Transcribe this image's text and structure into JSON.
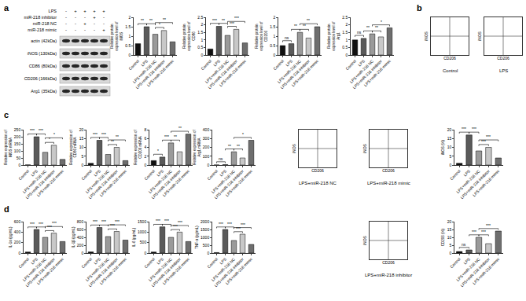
{
  "panel_labels": [
    "a",
    "b",
    "c",
    "d"
  ],
  "blot": {
    "treatments": [
      {
        "name": "LPS",
        "signs": [
          "-",
          "+",
          "+",
          "+",
          "+"
        ]
      },
      {
        "name": "miR-218 inhibitor",
        "signs": [
          "-",
          "-",
          "-",
          "+",
          "-"
        ]
      },
      {
        "name": "miR-218 NC",
        "signs": [
          "-",
          "-",
          "+",
          "-",
          "-"
        ]
      },
      {
        "name": "miR-218 mimic",
        "signs": [
          "-",
          "-",
          "-",
          "-",
          "+"
        ]
      }
    ],
    "bands": [
      "actin (42kDa)",
      "iNOS (130kDa)",
      "CD86 (80kDa)",
      "CD206 (166kDa)",
      "Arg1 (35kDa)"
    ]
  },
  "flow_plots": [
    {
      "title": "Control",
      "x_label": "CD206",
      "y_label": "iNOS"
    },
    {
      "title": "LPS",
      "x_label": "CD206",
      "y_label": "iNOS"
    },
    {
      "title": "LPS+miR-218 NC",
      "x_label": "CD206",
      "y_label": "iNOS"
    },
    {
      "title": "LPS+miR-218 mimic",
      "x_label": "CD206",
      "y_label": "iNOS"
    },
    {
      "title": "LPS+miR-218 inhibitor",
      "x_label": "CD206",
      "y_label": "iNOS"
    }
  ],
  "chart_data": [
    {
      "type": "bar",
      "y_label": "Relative protein expression level of iNOS",
      "categories": [
        "Control",
        "LPS",
        "LPS+miR-218 NC",
        "LPS+miR-218 inhibitor",
        "LPS+miR-218 mimic"
      ],
      "values": [
        0.6,
        1.5,
        1.1,
        1.3,
        0.7
      ],
      "colors": [
        "#111111",
        "#5a5a5a",
        "#9a9a9a",
        "#c8c8c8",
        "#6e6e6e"
      ],
      "ylim": [
        0,
        2
      ],
      "yticks": [
        0,
        0.5,
        1,
        1.5,
        2
      ],
      "annotations": [
        {
          "from": "Control",
          "to": "LPS",
          "text": "**"
        },
        {
          "from": "LPS",
          "to": "LPS+miR-218 NC",
          "text": "**"
        },
        {
          "from": "LPS+miR-218 NC",
          "to": "LPS+miR-218 inhibitor",
          "text": "*"
        },
        {
          "from": "LPS+miR-218 NC",
          "to": "LPS+miR-218 mimic",
          "text": "**"
        }
      ]
    },
    {
      "type": "bar",
      "y_label": "Relative protein expression level of CD86",
      "categories": [
        "Control",
        "LPS",
        "LPS+miR-218 NC",
        "LPS+miR-218 inhibitor",
        "LPS+miR-218 mimic"
      ],
      "values": [
        0.4,
        1.9,
        1.3,
        1.7,
        0.8
      ],
      "colors": [
        "#111111",
        "#5a5a5a",
        "#9a9a9a",
        "#c8c8c8",
        "#6e6e6e"
      ],
      "ylim": [
        0,
        2.5
      ],
      "yticks": [
        0,
        0.5,
        1,
        1.5,
        2,
        2.5
      ],
      "annotations": [
        {
          "from": "Control",
          "to": "LPS",
          "text": "***"
        },
        {
          "from": "LPS",
          "to": "LPS+miR-218 NC",
          "text": "**"
        },
        {
          "from": "LPS+miR-218 NC",
          "to": "LPS+miR-218 inhibitor",
          "text": "***"
        },
        {
          "from": "LPS+miR-218 NC",
          "to": "LPS+miR-218 mimic",
          "text": "***"
        }
      ]
    },
    {
      "type": "bar",
      "y_label": "Relative protein expression level of CD206",
      "categories": [
        "Control",
        "LPS",
        "LPS+miR-218 NC",
        "LPS+miR-218 inhibitor",
        "LPS+miR-218 mimic"
      ],
      "values": [
        0.5,
        0.6,
        1.2,
        0.9,
        1.5
      ],
      "colors": [
        "#111111",
        "#5a5a5a",
        "#9a9a9a",
        "#c8c8c8",
        "#6e6e6e"
      ],
      "ylim": [
        0,
        2
      ],
      "yticks": [
        0,
        0.5,
        1,
        1.5,
        2
      ],
      "annotations": [
        {
          "from": "Control",
          "to": "LPS",
          "text": "ns"
        },
        {
          "from": "LPS",
          "to": "LPS+miR-218 NC",
          "text": "**"
        },
        {
          "from": "LPS+miR-218 NC",
          "to": "LPS+miR-218 inhibitor",
          "text": "**"
        },
        {
          "from": "LPS+miR-218 NC",
          "to": "LPS+miR-218 mimic",
          "text": "**"
        }
      ]
    },
    {
      "type": "bar",
      "y_label": "Relative protein expression level of Arg1",
      "categories": [
        "Control",
        "LPS",
        "LPS+miR-218 NC",
        "LPS+miR-218 inhibitor",
        "LPS+miR-218 mimic"
      ],
      "values": [
        1.0,
        1.1,
        1.4,
        1.2,
        1.8
      ],
      "colors": [
        "#111111",
        "#5a5a5a",
        "#9a9a9a",
        "#c8c8c8",
        "#6e6e6e"
      ],
      "ylim": [
        0,
        2.5
      ],
      "yticks": [
        0,
        0.5,
        1,
        1.5,
        2,
        2.5
      ],
      "annotations": [
        {
          "from": "Control",
          "to": "LPS",
          "text": "ns"
        },
        {
          "from": "LPS",
          "to": "LPS+miR-218 NC",
          "text": "**"
        },
        {
          "from": "LPS+miR-218 NC",
          "to": "LPS+miR-218 inhibitor",
          "text": "**"
        },
        {
          "from": "LPS+miR-218 NC",
          "to": "LPS+miR-218 mimic",
          "text": "*"
        }
      ]
    },
    {
      "type": "bar",
      "y_label": "Relative expression of iNOS mRNA",
      "categories": [
        "Control",
        "LPS",
        "LPS+miR-218 NC",
        "LPS+miR-218 inhibitor",
        "LPS+miR-218 mimic"
      ],
      "values": [
        1,
        200,
        90,
        140,
        40
      ],
      "colors": [
        "#111111",
        "#5a5a5a",
        "#9a9a9a",
        "#c8c8c8",
        "#6e6e6e"
      ],
      "ylim": [
        0,
        250
      ],
      "yticks": [
        0,
        50,
        100,
        150,
        200,
        250
      ],
      "annotations": [
        {
          "from": "Control",
          "to": "LPS",
          "text": "***"
        },
        {
          "from": "LPS",
          "to": "LPS+miR-218 NC",
          "text": "***"
        },
        {
          "from": "LPS+miR-218 NC",
          "to": "LPS+miR-218 inhibitor",
          "text": "*"
        },
        {
          "from": "LPS+miR-218 NC",
          "to": "LPS+miR-218 mimic",
          "text": "*"
        }
      ]
    },
    {
      "type": "bar",
      "y_label": "Relative expression of CD86 mRNA",
      "categories": [
        "Control",
        "LPS",
        "LPS+miR-218 NC",
        "LPS+miR-218 inhibitor",
        "LPS+miR-218 mimic"
      ],
      "values": [
        1,
        14,
        6,
        10,
        2.5
      ],
      "colors": [
        "#111111",
        "#5a5a5a",
        "#9a9a9a",
        "#c8c8c8",
        "#6e6e6e"
      ],
      "ylim": [
        0,
        20
      ],
      "yticks": [
        0,
        5,
        10,
        15,
        20
      ],
      "annotations": [
        {
          "from": "Control",
          "to": "LPS",
          "text": "***"
        },
        {
          "from": "LPS",
          "to": "LPS+miR-218 NC",
          "text": "***"
        },
        {
          "from": "LPS+miR-218 NC",
          "to": "LPS+miR-218 inhibitor",
          "text": "**"
        },
        {
          "from": "LPS+miR-218 NC",
          "to": "LPS+miR-218 mimic",
          "text": "**"
        }
      ]
    },
    {
      "type": "bar",
      "y_label": "Relative expression of CD206 mRNA",
      "categories": [
        "Control",
        "LPS",
        "LPS+miR-218 NC",
        "LPS+miR-218 inhibitor",
        "LPS+miR-218 mimic"
      ],
      "values": [
        1,
        1.8,
        5,
        3,
        7
      ],
      "colors": [
        "#111111",
        "#5a5a5a",
        "#9a9a9a",
        "#c8c8c8",
        "#6e6e6e"
      ],
      "ylim": [
        0,
        8
      ],
      "yticks": [
        0,
        2,
        4,
        6,
        8
      ],
      "annotations": [
        {
          "from": "Control",
          "to": "LPS",
          "text": "*"
        },
        {
          "from": "LPS",
          "to": "LPS+miR-218 NC",
          "text": "***"
        },
        {
          "from": "LPS+miR-218 NC",
          "to": "LPS+miR-218 inhibitor",
          "text": "**"
        },
        {
          "from": "LPS+miR-218 NC",
          "to": "LPS+miR-218 mimic",
          "text": "**"
        }
      ]
    },
    {
      "type": "bar",
      "y_label": "Relative expression of Arg1 mRNA",
      "categories": [
        "Control",
        "LPS",
        "LPS+miR-218 NC",
        "LPS+miR-218 inhibitor",
        "LPS+miR-218 mimic"
      ],
      "values": [
        1,
        5,
        150,
        80,
        280
      ],
      "colors": [
        "#111111",
        "#5a5a5a",
        "#9a9a9a",
        "#c8c8c8",
        "#6e6e6e"
      ],
      "ylim": [
        0,
        400
      ],
      "yticks": [
        0,
        100,
        200,
        300,
        400
      ],
      "annotations": [
        {
          "from": "Control",
          "to": "LPS",
          "text": "ns"
        },
        {
          "from": "LPS",
          "to": "LPS+miR-218 NC",
          "text": "**"
        },
        {
          "from": "LPS+miR-218 NC",
          "to": "LPS+miR-218 inhibitor",
          "text": "**"
        },
        {
          "from": "LPS+miR-218 NC",
          "to": "LPS+miR-218 mimic",
          "text": "*"
        }
      ]
    },
    {
      "type": "bar",
      "y_label": "IL-1α (pg/mL)",
      "categories": [
        "Control",
        "LPS",
        "LPS+miR-218 NC",
        "LPS+miR-218 inhibitor",
        "LPS+miR-218 mimic"
      ],
      "values": [
        20,
        450,
        300,
        380,
        220
      ],
      "colors": [
        "#111111",
        "#5a5a5a",
        "#9a9a9a",
        "#c8c8c8",
        "#6e6e6e"
      ],
      "ylim": [
        0,
        600
      ],
      "yticks": [
        0,
        200,
        400,
        600
      ],
      "annotations": [
        {
          "from": "Control",
          "to": "LPS",
          "text": "***"
        },
        {
          "from": "LPS",
          "to": "LPS+miR-218 NC",
          "text": "***"
        },
        {
          "from": "LPS+miR-218 NC",
          "to": "LPS+miR-218 inhibitor",
          "text": "***"
        },
        {
          "from": "LPS+miR-218 NC",
          "to": "LPS+miR-218 mimic",
          "text": "***"
        }
      ]
    },
    {
      "type": "bar",
      "y_label": "IL-1β (pg/mL)",
      "categories": [
        "Control",
        "LPS",
        "LPS+miR-218 NC",
        "LPS+miR-218 inhibitor",
        "LPS+miR-218 mimic"
      ],
      "values": [
        30,
        650,
        420,
        550,
        330
      ],
      "colors": [
        "#111111",
        "#5a5a5a",
        "#9a9a9a",
        "#c8c8c8",
        "#6e6e6e"
      ],
      "ylim": [
        0,
        800
      ],
      "yticks": [
        0,
        200,
        400,
        600,
        800
      ],
      "annotations": [
        {
          "from": "Control",
          "to": "LPS",
          "text": "***"
        },
        {
          "from": "LPS",
          "to": "LPS+miR-218 NC",
          "text": "***"
        },
        {
          "from": "LPS+miR-218 NC",
          "to": "LPS+miR-218 inhibitor",
          "text": "***"
        },
        {
          "from": "LPS+miR-218 NC",
          "to": "LPS+miR-218 mimic",
          "text": "***"
        }
      ]
    },
    {
      "type": "bar",
      "y_label": "IL-6 (pg/mL)",
      "categories": [
        "Control",
        "LPS",
        "LPS+miR-218 NC",
        "LPS+miR-218 inhibitor",
        "LPS+miR-218 mimic"
      ],
      "values": [
        50,
        1250,
        750,
        1000,
        550
      ],
      "colors": [
        "#111111",
        "#5a5a5a",
        "#9a9a9a",
        "#c8c8c8",
        "#6e6e6e"
      ],
      "ylim": [
        0,
        1500
      ],
      "yticks": [
        0,
        500,
        1000,
        1500
      ],
      "annotations": [
        {
          "from": "Control",
          "to": "LPS",
          "text": "***"
        },
        {
          "from": "LPS",
          "to": "LPS+miR-218 NC",
          "text": "***"
        },
        {
          "from": "LPS+miR-218 NC",
          "to": "LPS+miR-218 inhibitor",
          "text": "***"
        },
        {
          "from": "LPS+miR-218 NC",
          "to": "LPS+miR-218 mimic",
          "text": "***"
        }
      ]
    },
    {
      "type": "bar",
      "y_label": "TNF-α (pg/mL)",
      "categories": [
        "Control",
        "LPS",
        "LPS+miR-218 NC",
        "LPS+miR-218 inhibitor",
        "LPS+miR-218 mimic"
      ],
      "values": [
        30,
        1500,
        800,
        1200,
        550
      ],
      "colors": [
        "#111111",
        "#5a5a5a",
        "#9a9a9a",
        "#c8c8c8",
        "#6e6e6e"
      ],
      "ylim": [
        0,
        2000
      ],
      "yticks": [
        0,
        500,
        1000,
        1500,
        2000
      ],
      "annotations": [
        {
          "from": "Control",
          "to": "LPS",
          "text": "***"
        },
        {
          "from": "LPS",
          "to": "LPS+miR-218 NC",
          "text": "***"
        },
        {
          "from": "LPS+miR-218 NC",
          "to": "LPS+miR-218 inhibitor",
          "text": "***"
        },
        {
          "from": "LPS+miR-218 NC",
          "to": "LPS+miR-218 mimic",
          "text": "***"
        }
      ]
    },
    {
      "type": "bar",
      "y_label": "iNOS (%)",
      "categories": [
        "Control",
        "LPS",
        "LPS+miR-218 NC",
        "LPS+miR-218 inhibitor",
        "LPS+miR-218 mimic"
      ],
      "values": [
        1,
        17,
        8,
        10,
        4
      ],
      "colors": [
        "#111111",
        "#5a5a5a",
        "#9a9a9a",
        "#c8c8c8",
        "#6e6e6e"
      ],
      "ylim": [
        0,
        20
      ],
      "yticks": [
        0,
        5,
        10,
        15,
        20
      ],
      "annotations": [
        {
          "from": "Control",
          "to": "LPS",
          "text": "***"
        },
        {
          "from": "LPS",
          "to": "LPS+miR-218 NC",
          "text": "***"
        },
        {
          "from": "LPS+miR-218 NC",
          "to": "LPS+miR-218 inhibitor",
          "text": "***"
        },
        {
          "from": "LPS+miR-218 NC",
          "to": "LPS+miR-218 mimic",
          "text": "***"
        }
      ]
    },
    {
      "type": "bar",
      "y_label": "CD206 (%)",
      "categories": [
        "Control",
        "LPS",
        "LPS+miR-218 NC",
        "LPS+miR-218 inhibitor",
        "LPS+miR-218 mimic"
      ],
      "values": [
        1,
        2,
        10,
        6,
        14
      ],
      "colors": [
        "#111111",
        "#5a5a5a",
        "#9a9a9a",
        "#c8c8c8",
        "#6e6e6e"
      ],
      "ylim": [
        0,
        20
      ],
      "yticks": [
        0,
        5,
        10,
        15,
        20
      ],
      "annotations": [
        {
          "from": "Control",
          "to": "LPS",
          "text": "ns"
        },
        {
          "from": "LPS",
          "to": "LPS+miR-218 NC",
          "text": "***"
        },
        {
          "from": "LPS+miR-218 NC",
          "to": "LPS+miR-218 inhibitor",
          "text": "***"
        },
        {
          "from": "LPS+miR-218 NC",
          "to": "LPS+miR-218 mimic",
          "text": "***"
        }
      ]
    }
  ]
}
